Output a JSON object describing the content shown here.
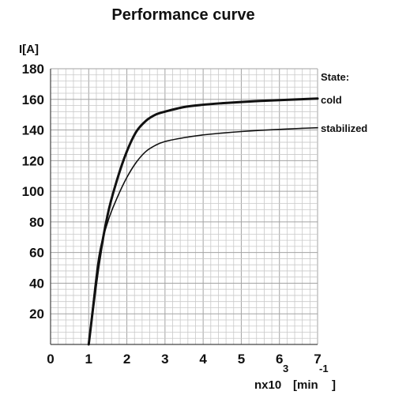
{
  "chart_data": {
    "type": "line",
    "title": "Performance curve",
    "ylabel": "I[A]",
    "xlabel": {
      "base": "nx10",
      "superscript": "3",
      "unit_open": "[min",
      "unit_superscript": "-1",
      "unit_close": "]"
    },
    "xlim": [
      0,
      7
    ],
    "ylim": [
      0,
      180
    ],
    "x_ticks": [
      "0",
      "1",
      "2",
      "3",
      "4",
      "5",
      "6",
      "7"
    ],
    "y_ticks": [
      "20",
      "40",
      "60",
      "80",
      "100",
      "120",
      "140",
      "160",
      "180"
    ],
    "grid": true,
    "legend_title": "State:",
    "legend_placement": "right",
    "series": [
      {
        "name": "cold",
        "color": "#111111",
        "emphasis": "bold",
        "x": [
          1.0,
          1.25,
          1.5,
          1.75,
          2.0,
          2.25,
          2.5,
          2.75,
          3.0,
          3.5,
          4.0,
          4.5,
          5.0,
          5.5,
          6.0,
          6.5,
          7.0
        ],
        "y": [
          0,
          50,
          85,
          108,
          126,
          139,
          146,
          150,
          152,
          155,
          156.5,
          157.5,
          158.3,
          159,
          159.5,
          160,
          160.5
        ]
      },
      {
        "name": "stabilized",
        "color": "#111111",
        "emphasis": "regular",
        "x": [
          1.0,
          1.25,
          1.5,
          1.75,
          2.0,
          2.25,
          2.5,
          2.75,
          3.0,
          3.5,
          4.0,
          4.5,
          5.0,
          5.5,
          6.0,
          6.5,
          7.0
        ],
        "y": [
          0,
          55,
          80,
          96,
          109,
          119,
          126,
          130,
          132.5,
          135,
          136.8,
          138,
          139,
          139.8,
          140.4,
          141,
          141.5
        ]
      }
    ]
  }
}
